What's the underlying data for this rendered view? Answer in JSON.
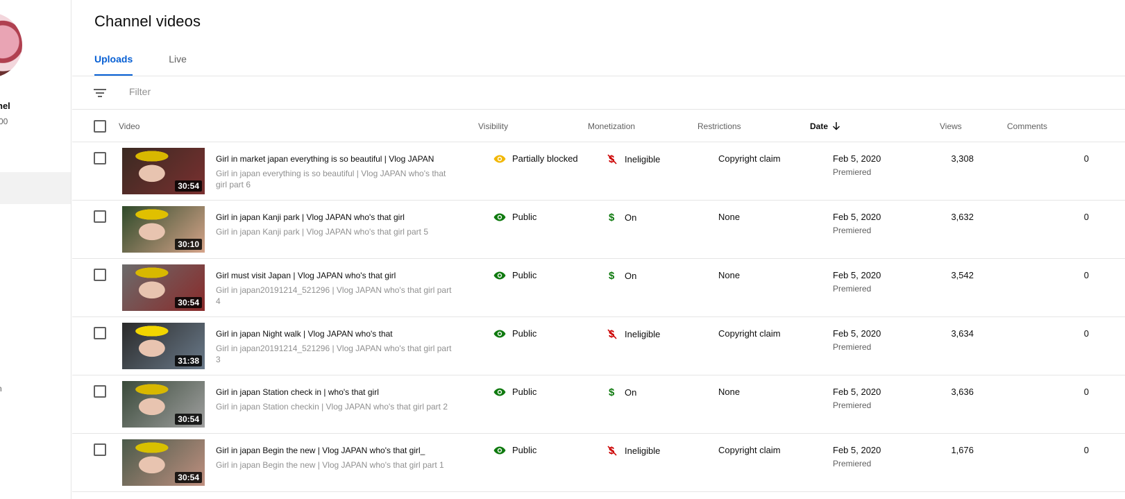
{
  "sidebar": {
    "channel_name_fragment": "nel",
    "channel_sub_fragment": "00",
    "bottom_fragment": "n"
  },
  "page": {
    "title": "Channel videos",
    "tabs": [
      {
        "label": "Uploads",
        "active": true
      },
      {
        "label": "Live",
        "active": false
      }
    ]
  },
  "filter": {
    "placeholder": "Filter",
    "icon": "filter-icon"
  },
  "table": {
    "headers": {
      "video": "Video",
      "visibility": "Visibility",
      "monetization": "Monetization",
      "restrictions": "Restrictions",
      "date": "Date",
      "views": "Views",
      "comments": "Comments"
    },
    "sort_icon": "arrow-down-icon",
    "rows": [
      {
        "thumb_colors": [
          "#3a2a22",
          "#d8b800",
          "#7a3030"
        ],
        "duration": "30:54",
        "title": "Girl in market japan everything is so beautiful | Vlog JAPAN",
        "description": "Girl in japan everything is so beautiful | Vlog JAPAN who's that girl part 6",
        "visibility": "Partially blocked",
        "visibility_icon": "eye-icon",
        "visibility_color": "#f2b705",
        "monetization": "Ineligible",
        "monetization_icon": "dollar-off-icon",
        "monetization_color": "#cc0000",
        "restrictions": "Copyright claim",
        "date": "Feb 5, 2020",
        "date_sub": "Premiered",
        "views": "3,308",
        "comments": "0"
      },
      {
        "thumb_colors": [
          "#2f4a2a",
          "#e0c000",
          "#d6a48a"
        ],
        "duration": "30:10",
        "title": "Girl in japan Kanji park | Vlog JAPAN who's that girl",
        "description": "Girl in japan Kanji park | Vlog JAPAN who's that girl part 5",
        "visibility": "Public",
        "visibility_icon": "eye-icon",
        "visibility_color": "#0f7a0f",
        "monetization": "On",
        "monetization_icon": "dollar-icon",
        "monetization_color": "#0f7a0f",
        "restrictions": "None",
        "date": "Feb 5, 2020",
        "date_sub": "Premiered",
        "views": "3,632",
        "comments": "0"
      },
      {
        "thumb_colors": [
          "#6b6b6b",
          "#d8b800",
          "#8a2a2a"
        ],
        "duration": "30:54",
        "title": "Girl must visit Japan | Vlog JAPAN who's that girl",
        "description": "Girl in japan20191214_521296 | Vlog JAPAN who's that girl part 4",
        "visibility": "Public",
        "visibility_icon": "eye-icon",
        "visibility_color": "#0f7a0f",
        "monetization": "On",
        "monetization_icon": "dollar-icon",
        "monetization_color": "#0f7a0f",
        "restrictions": "None",
        "date": "Feb 5, 2020",
        "date_sub": "Premiered",
        "views": "3,542",
        "comments": "0"
      },
      {
        "thumb_colors": [
          "#2a2a2a",
          "#f2d600",
          "#6a7a8a"
        ],
        "duration": "31:38",
        "title": "Girl in japan Night walk | Vlog JAPAN who's that",
        "description": "Girl in japan20191214_521296 | Vlog JAPAN who's that girl part 3",
        "visibility": "Public",
        "visibility_icon": "eye-icon",
        "visibility_color": "#0f7a0f",
        "monetization": "Ineligible",
        "monetization_icon": "dollar-off-icon",
        "monetization_color": "#cc0000",
        "restrictions": "Copyright claim",
        "date": "Feb 5, 2020",
        "date_sub": "Premiered",
        "views": "3,634",
        "comments": "0"
      },
      {
        "thumb_colors": [
          "#3a4a3a",
          "#d8b800",
          "#a0a0a0"
        ],
        "duration": "30:54",
        "title": "Girl in japan Station check in | who's that girl",
        "description": "Girl in japan Station checkin | Vlog JAPAN who's that girl part 2",
        "visibility": "Public",
        "visibility_icon": "eye-icon",
        "visibility_color": "#0f7a0f",
        "monetization": "On",
        "monetization_icon": "dollar-icon",
        "monetization_color": "#0f7a0f",
        "restrictions": "None",
        "date": "Feb 5, 2020",
        "date_sub": "Premiered",
        "views": "3,636",
        "comments": "0"
      },
      {
        "thumb_colors": [
          "#4a5a4a",
          "#d8c000",
          "#c09080"
        ],
        "duration": "30:54",
        "title": "Girl in japan Begin the new | Vlog JAPAN who's that girl_",
        "description": "Girl in japan Begin the new | Vlog JAPAN who's that girl part 1",
        "visibility": "Public",
        "visibility_icon": "eye-icon",
        "visibility_color": "#0f7a0f",
        "monetization": "Ineligible",
        "monetization_icon": "dollar-off-icon",
        "monetization_color": "#cc0000",
        "restrictions": "Copyright claim",
        "date": "Feb 5, 2020",
        "date_sub": "Premiered",
        "views": "1,676",
        "comments": "0"
      }
    ]
  }
}
